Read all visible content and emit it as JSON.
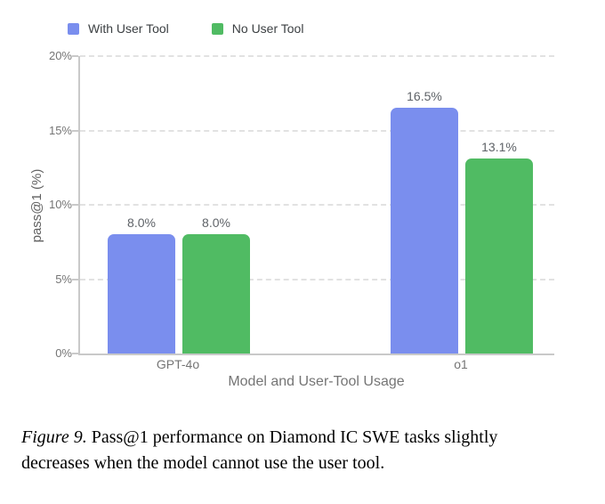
{
  "chart_data": {
    "type": "bar",
    "title": "",
    "categories": [
      "GPT-4o",
      "o1"
    ],
    "series": [
      {
        "name": "With User Tool",
        "color": "#7a8eee",
        "values": [
          8.0,
          16.5
        ],
        "labels": [
          "8.0%",
          "16.5%"
        ]
      },
      {
        "name": "No User Tool",
        "color": "#50bb63",
        "values": [
          8.0,
          13.1
        ],
        "labels": [
          "8.0%",
          "13.1%"
        ]
      }
    ],
    "xlabel": "Model and User-Tool Usage",
    "ylabel": "pass@1 (%)",
    "ylim": [
      0,
      20
    ],
    "yticks": [
      "0%",
      "5%",
      "10%",
      "15%",
      "20%"
    ],
    "grid": "horizontal-dashed",
    "legend_position": "top-left",
    "colors": {
      "axis": "#c9c9c9",
      "gridline": "#e2e2e2",
      "tick_label": "#757575",
      "value_label": "#5f6368"
    }
  },
  "caption": {
    "prefix": "Figure 9.",
    "line1_rest": " Pass@1 performance on Diamond IC SWE tasks slightly",
    "line2": "decreases when the model cannot use the user tool."
  }
}
